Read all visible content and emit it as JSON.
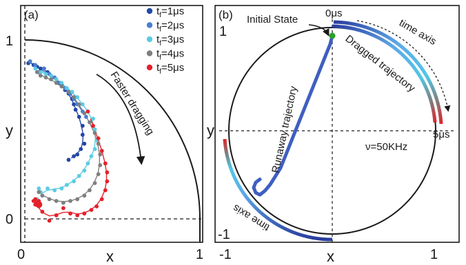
{
  "chart_data": [
    {
      "panel": "(a)",
      "type": "scatter",
      "xlabel": "x",
      "ylabel": "y",
      "xlim": [
        0,
        1
      ],
      "ylim": [
        0,
        1
      ],
      "x_ticks": [
        "0",
        "1"
      ],
      "y_ticks": [
        "0",
        "1"
      ],
      "legend_position": "top-right",
      "annotation": "Faster dragging",
      "series": [
        {
          "name": "t_f=1μs",
          "sub": "f",
          "prefix": "t",
          "suffix": "=1μs",
          "color": "#2547a6",
          "x": [
            0.02,
            0.03,
            0.05,
            0.07,
            0.09,
            0.11,
            0.13,
            0.15,
            0.17,
            0.19,
            0.21,
            0.23,
            0.25,
            0.27,
            0.28,
            0.29,
            0.31,
            0.33,
            0.33,
            0.34,
            0.32,
            0.3,
            0.28,
            0.25
          ],
          "y": [
            0.87,
            0.88,
            0.86,
            0.85,
            0.84,
            0.84,
            0.82,
            0.8,
            0.79,
            0.76,
            0.75,
            0.72,
            0.7,
            0.67,
            0.64,
            0.61,
            0.57,
            0.52,
            0.47,
            0.42,
            0.39,
            0.36,
            0.35,
            0.33
          ]
        },
        {
          "name": "t_f=2μs",
          "sub": "f",
          "prefix": "t",
          "suffix": "=2μs",
          "color": "#4b7fcc",
          "x": [
            0.03,
            0.06,
            0.08,
            0.11,
            0.14,
            0.17,
            0.2,
            0.23,
            0.26,
            0.28,
            0.3,
            0.33,
            0.35
          ],
          "y": [
            0.88,
            0.86,
            0.82,
            0.84,
            0.81,
            0.79,
            0.76,
            0.73,
            0.7,
            0.67,
            0.64,
            0.6,
            0.57
          ]
        },
        {
          "name": "t_f=3μs",
          "sub": "f",
          "prefix": "t",
          "suffix": "=3μs",
          "color": "#5ccbe3",
          "x": [
            0.06,
            0.09,
            0.12,
            0.15,
            0.18,
            0.21,
            0.24,
            0.27,
            0.3,
            0.33,
            0.36,
            0.39,
            0.4,
            0.41,
            0.4,
            0.38,
            0.36,
            0.34,
            0.31,
            0.28,
            0.24,
            0.21,
            0.17,
            0.13,
            0.09,
            0.07,
            0.08
          ],
          "y": [
            0.84,
            0.82,
            0.81,
            0.8,
            0.78,
            0.76,
            0.73,
            0.71,
            0.68,
            0.64,
            0.6,
            0.56,
            0.5,
            0.44,
            0.39,
            0.35,
            0.31,
            0.27,
            0.24,
            0.21,
            0.19,
            0.17,
            0.16,
            0.17,
            0.15,
            0.11,
            0.17
          ]
        },
        {
          "name": "t_f=4μs",
          "sub": "f",
          "prefix": "t",
          "suffix": "=4μs",
          "color": "#7f7f7f",
          "x": [
            0.07,
            0.09,
            0.12,
            0.15,
            0.18,
            0.21,
            0.25,
            0.28,
            0.31,
            0.34,
            0.37,
            0.4,
            0.42,
            0.43,
            0.43,
            0.42,
            0.4,
            0.37,
            0.34,
            0.3,
            0.26,
            0.22,
            0.18,
            0.14,
            0.1,
            0.08
          ],
          "y": [
            0.82,
            0.8,
            0.79,
            0.78,
            0.76,
            0.74,
            0.71,
            0.68,
            0.64,
            0.59,
            0.54,
            0.48,
            0.42,
            0.36,
            0.3,
            0.25,
            0.2,
            0.16,
            0.13,
            0.11,
            0.1,
            0.09,
            0.1,
            0.11,
            0.13,
            0.15
          ]
        },
        {
          "name": "t_f=5μs",
          "sub": "f",
          "prefix": "t",
          "suffix": "=5μs",
          "color": "#e4212a",
          "x": [
            0.36,
            0.39,
            0.42,
            0.44,
            0.46,
            0.47,
            0.47,
            0.46,
            0.44,
            0.41,
            0.38,
            0.34,
            0.3,
            0.26,
            0.22,
            0.18,
            0.14,
            0.1,
            0.06,
            0.05,
            0.06,
            0.07,
            0.08
          ],
          "y": [
            0.6,
            0.52,
            0.45,
            0.38,
            0.31,
            0.26,
            0.21,
            0.16,
            0.11,
            0.07,
            0.05,
            0.03,
            0.02,
            0.03,
            0.06,
            0.02,
            -0.01,
            0.04,
            0.08,
            0.1,
            0.11,
            0.09,
            0.1
          ]
        }
      ]
    },
    {
      "panel": "(b)",
      "type": "line",
      "xlabel": "x",
      "ylabel": "y",
      "xlim": [
        -1,
        1
      ],
      "ylim": [
        -1,
        1
      ],
      "x_ticks": [
        "-1",
        "1"
      ],
      "y_ticks": [
        "-1",
        "1"
      ],
      "annotations": {
        "initial_state": "Initial State",
        "runaway": "Runaway trajectory",
        "dragged": "Dragged trajectory",
        "time_axis_top": "time axis",
        "time_axis_bottom": "time axis",
        "start_time": "0μs",
        "end_time": "5μs",
        "frequency": "ν=50KHz"
      },
      "initial_state_point": {
        "x": 0.0,
        "y": 0.92,
        "color": "#2ca02c"
      },
      "runaway_trajectory": {
        "x": [
          0.0,
          -0.02,
          -0.06,
          -0.1,
          -0.14,
          -0.18,
          -0.22,
          -0.26,
          -0.3,
          -0.34,
          -0.38,
          -0.42,
          -0.46,
          -0.5,
          -0.55,
          -0.6,
          -0.65,
          -0.7,
          -0.74,
          -0.76,
          -0.74,
          -0.7
        ],
        "y": [
          0.92,
          0.84,
          0.74,
          0.64,
          0.54,
          0.44,
          0.34,
          0.24,
          0.14,
          0.04,
          -0.06,
          -0.16,
          -0.26,
          -0.36,
          -0.44,
          -0.52,
          -0.58,
          -0.62,
          -0.6,
          -0.55,
          -0.5,
          -0.47
        ]
      },
      "gradient_colors": [
        "#2a3d9e",
        "#5da8e8",
        "#52c7e6",
        "#7f7f7f",
        "#e4212a"
      ]
    }
  ]
}
